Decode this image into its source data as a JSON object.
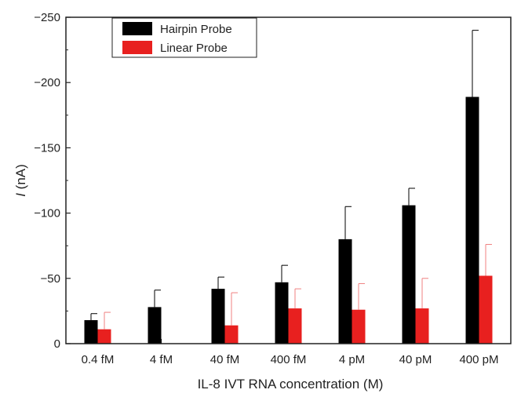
{
  "chart_data": {
    "type": "bar",
    "title": "",
    "xlabel": "IL-8 IVT RNA concentration (M)",
    "ylabel_symbol": "I",
    "ylabel_unit": " (nA)",
    "categories": [
      "0.4 fM",
      "4 fM",
      "40 fM",
      "400 fM",
      "4 pM",
      "40 pM",
      "400 pM"
    ],
    "ylim": [
      0,
      -250
    ],
    "yticks": [
      0,
      -50,
      -100,
      -150,
      -200,
      -250
    ],
    "ytick_labels": [
      "0",
      "−50",
      "−100",
      "−150",
      "−200",
      "−250"
    ],
    "legend_position": "top-left",
    "series": [
      {
        "name": "Hairpin Probe",
        "color": "#000000",
        "errorColor": "#000000",
        "values": [
          -18,
          -28,
          -42,
          -47,
          -80,
          -106,
          -189
        ],
        "errors": [
          5,
          13,
          9,
          13,
          25,
          13,
          51
        ]
      },
      {
        "name": "Linear Probe",
        "color": "#e8201f",
        "errorColor": "#f08080",
        "values": [
          -11,
          null,
          -14,
          -27,
          -26,
          -27,
          -52
        ],
        "errors": [
          13,
          null,
          25,
          15,
          20,
          23,
          24
        ]
      }
    ]
  }
}
